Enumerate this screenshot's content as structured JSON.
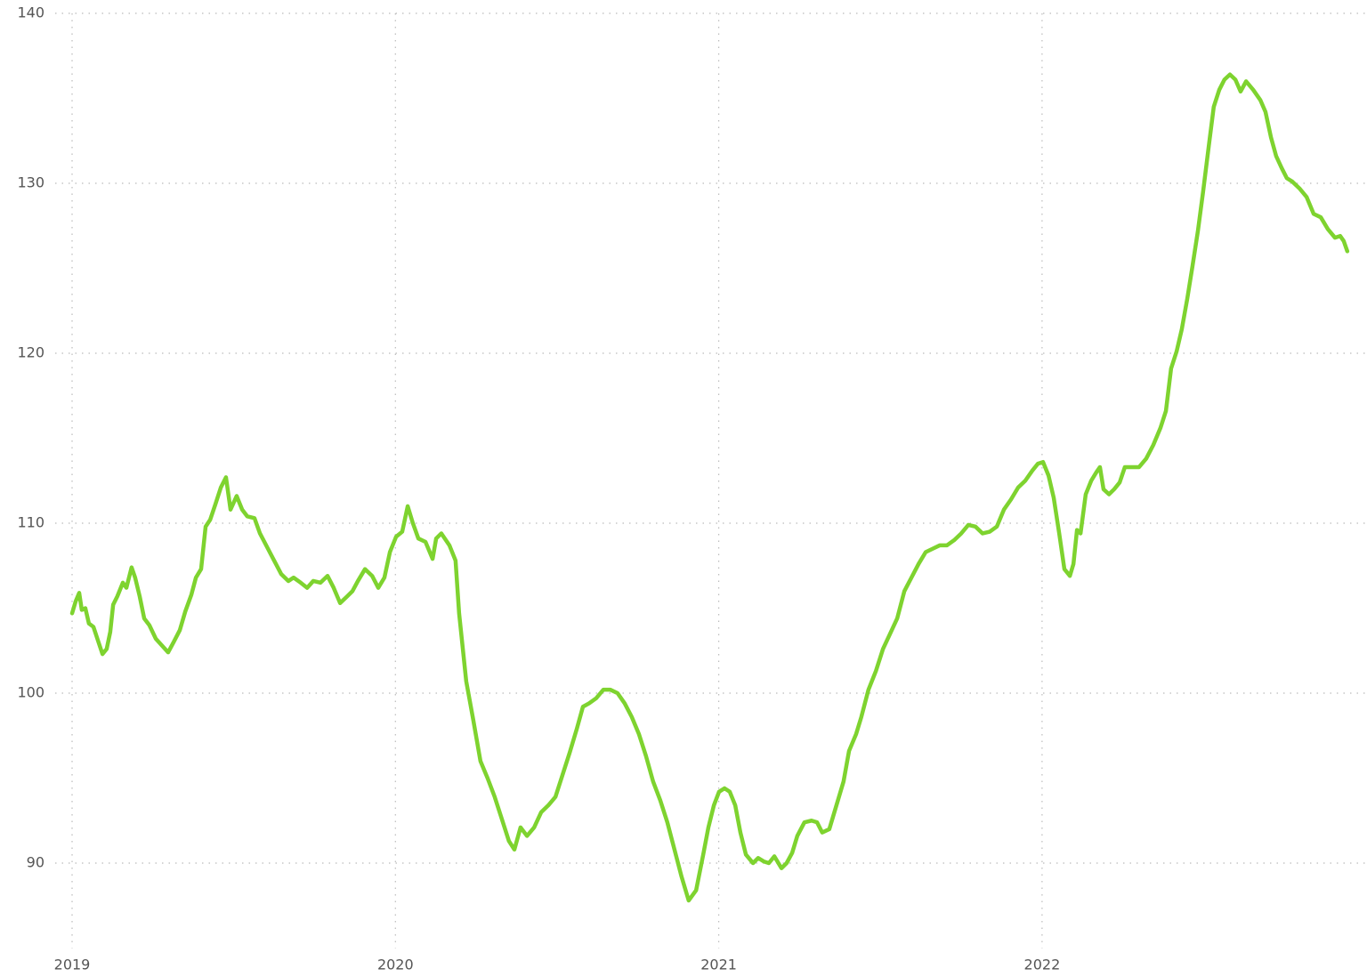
{
  "chart_data": {
    "type": "line",
    "x": [
      2019.0,
      2019.011,
      2019.022,
      2019.03,
      2019.041,
      2019.052,
      2019.066,
      2019.08,
      2019.094,
      2019.107,
      2019.118,
      2019.127,
      2019.14,
      2019.157,
      2019.168,
      2019.184,
      2019.195,
      2019.209,
      2019.223,
      2019.239,
      2019.259,
      2019.278,
      2019.297,
      2019.314,
      2019.333,
      2019.35,
      2019.369,
      2019.383,
      2019.399,
      2019.413,
      2019.427,
      2019.443,
      2019.46,
      2019.476,
      2019.49,
      2019.509,
      2019.526,
      2019.542,
      2019.564,
      2019.581,
      2019.603,
      2019.625,
      2019.647,
      2019.669,
      2019.685,
      2019.707,
      2019.727,
      2019.746,
      2019.768,
      2019.79,
      2019.809,
      2019.829,
      2019.851,
      2019.867,
      2019.884,
      2019.906,
      2019.928,
      2019.947,
      2019.966,
      2019.983,
      2020.002,
      2020.021,
      2020.038,
      2020.054,
      2020.071,
      2020.093,
      2020.115,
      2020.126,
      2020.142,
      2020.167,
      2020.186,
      2020.197,
      2020.219,
      2020.241,
      2020.263,
      2020.285,
      2020.307,
      2020.329,
      2020.351,
      2020.368,
      2020.387,
      2020.407,
      2020.429,
      2020.451,
      2020.473,
      2020.495,
      2020.517,
      2020.539,
      2020.561,
      2020.58,
      2020.599,
      2020.621,
      2020.643,
      2020.665,
      2020.687,
      2020.709,
      2020.731,
      2020.753,
      2020.775,
      2020.797,
      2020.819,
      2020.841,
      2020.863,
      2020.885,
      2020.907,
      2020.93,
      2020.952,
      2020.968,
      2020.985,
      2021.001,
      2021.018,
      2021.034,
      2021.051,
      2021.067,
      2021.084,
      2021.106,
      2021.122,
      2021.139,
      2021.155,
      2021.172,
      2021.194,
      2021.21,
      2021.227,
      2021.243,
      2021.265,
      2021.287,
      2021.304,
      2021.32,
      2021.342,
      2021.364,
      2021.386,
      2021.403,
      2021.425,
      2021.441,
      2021.463,
      2021.486,
      2021.508,
      2021.53,
      2021.552,
      2021.574,
      2021.596,
      2021.618,
      2021.64,
      2021.662,
      2021.684,
      2021.706,
      2021.728,
      2021.75,
      2021.772,
      2021.794,
      2021.816,
      2021.838,
      2021.86,
      2021.882,
      2021.904,
      2021.926,
      2021.948,
      2021.97,
      2021.987,
      2022.003,
      2022.02,
      2022.036,
      2022.053,
      2022.069,
      2022.086,
      2022.097,
      2022.108,
      2022.119,
      2022.135,
      2022.152,
      2022.168,
      2022.179,
      2022.19,
      2022.207,
      2022.223,
      2022.24,
      2022.256,
      2022.278,
      2022.3,
      2022.322,
      2022.344,
      2022.366,
      2022.383,
      2022.399,
      2022.416,
      2022.432,
      2022.449,
      2022.465,
      2022.482,
      2022.498,
      2022.515,
      2022.531,
      2022.548,
      2022.564,
      2022.581,
      2022.598,
      2022.614,
      2022.631,
      2022.653,
      2022.675,
      2022.691,
      2022.708,
      2022.724,
      2022.741,
      2022.757,
      2022.774,
      2022.796,
      2022.818,
      2022.84,
      2022.862,
      2022.884,
      2022.906,
      2022.922,
      2022.933,
      2022.944
    ],
    "series": [
      {
        "color": "#7ed32f",
        "values": [
          104.7,
          105.4,
          105.9,
          104.9,
          105.0,
          104.1,
          103.9,
          103.1,
          102.3,
          102.6,
          103.6,
          105.2,
          105.7,
          106.5,
          106.2,
          107.4,
          106.8,
          105.7,
          104.4,
          104.0,
          103.2,
          102.8,
          102.4,
          103.0,
          103.7,
          104.8,
          105.8,
          106.8,
          107.3,
          109.8,
          110.2,
          111.1,
          112.1,
          112.7,
          110.8,
          111.6,
          110.8,
          110.4,
          110.3,
          109.4,
          108.6,
          107.8,
          107.0,
          106.6,
          106.8,
          106.5,
          106.2,
          106.6,
          106.5,
          106.9,
          106.2,
          105.3,
          105.7,
          106.0,
          106.6,
          107.3,
          106.9,
          106.2,
          106.8,
          108.3,
          109.2,
          109.5,
          111.0,
          110.0,
          109.1,
          108.9,
          107.9,
          109.1,
          109.4,
          108.7,
          107.8,
          104.7,
          100.7,
          98.4,
          96.0,
          95.0,
          93.9,
          92.6,
          91.3,
          90.8,
          92.1,
          91.6,
          92.1,
          93.0,
          93.4,
          93.9,
          95.2,
          96.5,
          97.9,
          99.2,
          99.4,
          99.7,
          100.2,
          100.2,
          100.0,
          99.4,
          98.6,
          97.6,
          96.3,
          94.8,
          93.7,
          92.4,
          90.8,
          89.2,
          87.8,
          88.4,
          90.5,
          92.1,
          93.4,
          94.2,
          94.4,
          94.2,
          93.4,
          91.8,
          90.5,
          90.0,
          90.3,
          90.1,
          90.0,
          90.4,
          89.7,
          90.0,
          90.6,
          91.6,
          92.4,
          92.5,
          92.4,
          91.8,
          92.0,
          93.4,
          94.8,
          96.6,
          97.6,
          98.6,
          100.2,
          101.3,
          102.6,
          103.5,
          104.4,
          106.0,
          106.8,
          107.6,
          108.3,
          108.5,
          108.7,
          108.7,
          109.0,
          109.4,
          109.9,
          109.8,
          109.4,
          109.5,
          109.8,
          110.8,
          111.4,
          112.1,
          112.5,
          113.1,
          113.5,
          113.6,
          112.8,
          111.5,
          109.4,
          107.3,
          106.9,
          107.6,
          109.6,
          109.4,
          111.7,
          112.5,
          113.0,
          113.3,
          112.0,
          111.7,
          112.0,
          112.4,
          113.3,
          113.3,
          113.3,
          113.8,
          114.6,
          115.6,
          116.6,
          119.1,
          120.1,
          121.4,
          123.2,
          125.1,
          127.2,
          129.5,
          132.1,
          134.5,
          135.5,
          136.1,
          136.4,
          136.1,
          135.4,
          136.0,
          135.5,
          134.9,
          134.2,
          132.7,
          131.6,
          130.9,
          130.3,
          130.1,
          129.7,
          129.2,
          128.2,
          128.0,
          127.3,
          126.8,
          126.9,
          126.6,
          126.0
        ]
      }
    ],
    "xlim": [
      2019,
      2023
    ],
    "xticks": [
      2019,
      2020,
      2021,
      2022
    ],
    "ylim": [
      85,
      140
    ],
    "yticks": [
      90,
      100,
      110,
      120,
      130,
      140
    ],
    "grid": true
  }
}
